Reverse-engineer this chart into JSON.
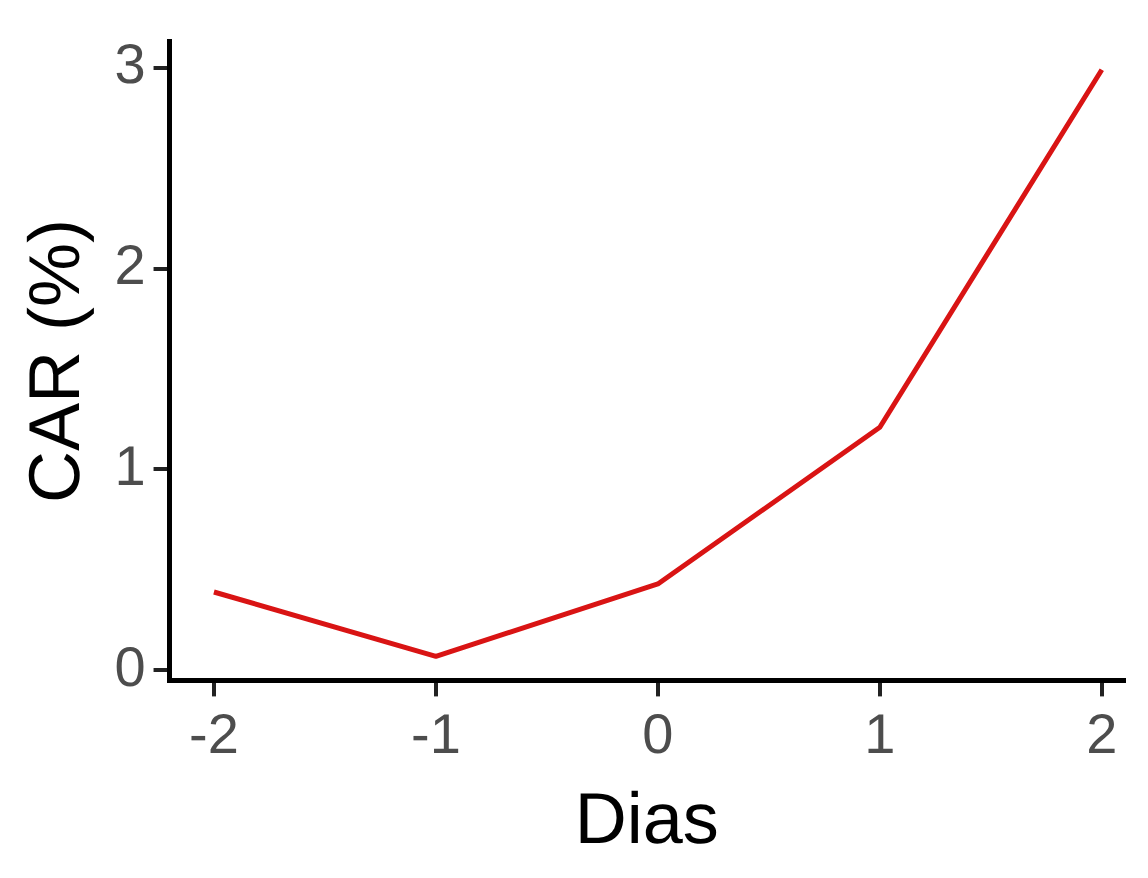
{
  "chart_data": {
    "type": "line",
    "xlabel": "Dias",
    "ylabel": "CAR (%)",
    "x": [
      -2,
      -1,
      0,
      1,
      2
    ],
    "series": [
      {
        "color": "#d91414",
        "values": [
          0.39,
          0.07,
          0.43,
          1.21,
          2.99
        ]
      }
    ],
    "xlim": [
      -2.2,
      2.1
    ],
    "xticks": [
      -2,
      -1,
      0,
      1,
      2
    ],
    "ylim": [
      -0.05,
      3.13
    ],
    "yticks": [
      0,
      1,
      2,
      3
    ],
    "grid": false,
    "legend": false,
    "marker": "none",
    "line_style": "solid"
  }
}
